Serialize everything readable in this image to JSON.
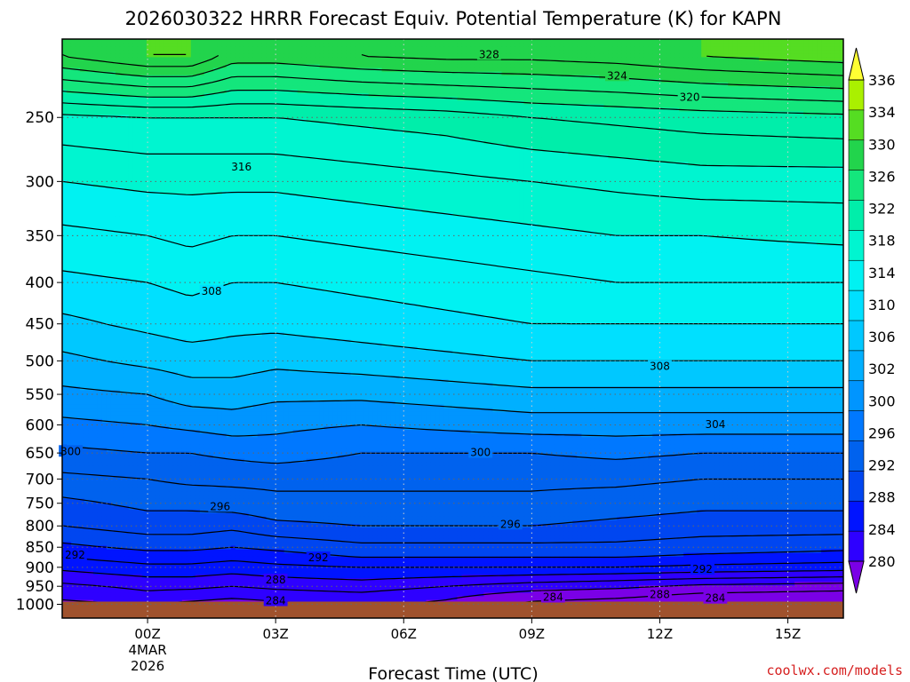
{
  "title": "2026030322 HRRR Forecast Equiv. Potential Temperature (K) for KAPN",
  "xlabel": "Forecast Time (UTC)",
  "credit": "coolwx.com/models",
  "colors": {
    "terrain": "#a0522d",
    "contour": "#000000",
    "gridline": "#666666"
  },
  "chart_data": {
    "type": "heatmap",
    "title": "2026030322 HRRR Forecast Equiv. Potential Temperature (K) for KAPN",
    "xlabel": "Forecast Time (UTC)",
    "ylabel": "",
    "y_scale": "log",
    "y_reversed": true,
    "y_range": [
      1040,
      200
    ],
    "x_range": [
      -2,
      16.3
    ],
    "grid": "dotted",
    "x_ticks": [
      {
        "value": 0,
        "label": "00Z",
        "date_lines": [
          "4MAR",
          "2026"
        ]
      },
      {
        "value": 3,
        "label": "03Z"
      },
      {
        "value": 6,
        "label": "06Z"
      },
      {
        "value": 9,
        "label": "09Z"
      },
      {
        "value": 12,
        "label": "12Z"
      },
      {
        "value": 15,
        "label": "15Z"
      }
    ],
    "y_ticks": [
      250,
      300,
      350,
      400,
      450,
      500,
      550,
      600,
      650,
      700,
      750,
      800,
      850,
      900,
      950,
      1000
    ],
    "forecast_hours": [
      -2,
      0,
      1,
      2,
      3,
      5,
      7,
      9,
      11,
      13,
      16.3
    ],
    "levels_hpa": [
      1000,
      975,
      950,
      925,
      900,
      875,
      850,
      800,
      750,
      700,
      650,
      600,
      550,
      500,
      450,
      400,
      350,
      300,
      250,
      210
    ],
    "theta_e_K": [
      [
        283.5,
        284.0,
        283.5,
        283.0,
        283.5,
        284.5,
        283.5,
        281.5,
        281.0,
        280.5,
        280.0
      ],
      [
        284.5,
        285.5,
        285.0,
        284.5,
        285.0,
        285.5,
        284.5,
        283.0,
        282.5,
        281.5,
        281.0
      ],
      [
        285.5,
        286.5,
        286.5,
        286.0,
        286.5,
        287.0,
        286.0,
        285.0,
        284.5,
        283.5,
        283.0
      ],
      [
        287.0,
        288.0,
        288.0,
        287.5,
        288.0,
        288.5,
        288.0,
        287.5,
        287.0,
        286.5,
        286.0
      ],
      [
        288.5,
        289.5,
        289.5,
        289.0,
        289.5,
        290.0,
        290.0,
        290.0,
        290.0,
        289.5,
        289.0
      ],
      [
        290.0,
        291.0,
        291.0,
        290.5,
        291.0,
        292.0,
        292.0,
        292.0,
        292.0,
        291.5,
        291.0
      ],
      [
        291.5,
        292.5,
        292.5,
        292.0,
        292.5,
        293.5,
        293.5,
        293.5,
        293.5,
        293.0,
        292.5
      ],
      [
        294.0,
        295.0,
        295.0,
        294.5,
        295.5,
        296.0,
        296.0,
        296.0,
        295.5,
        295.0,
        295.0
      ],
      [
        295.5,
        296.5,
        296.5,
        297.0,
        297.5,
        297.5,
        297.5,
        297.5,
        297.0,
        296.5,
        296.5
      ],
      [
        297.5,
        298.0,
        298.5,
        298.5,
        298.5,
        298.5,
        298.5,
        298.5,
        298.5,
        298.0,
        298.0
      ],
      [
        299.5,
        300.0,
        300.0,
        300.5,
        301.0,
        300.0,
        300.0,
        300.0,
        300.5,
        300.0,
        300.0
      ],
      [
        301.5,
        302.0,
        302.5,
        303.0,
        302.5,
        302.0,
        302.5,
        303.0,
        303.0,
        303.0,
        303.0
      ],
      [
        303.5,
        304.0,
        305.0,
        305.0,
        304.5,
        304.5,
        305.0,
        305.5,
        305.5,
        305.5,
        305.5
      ],
      [
        305.5,
        306.5,
        307.0,
        307.0,
        306.5,
        307.0,
        307.5,
        308.0,
        308.0,
        308.0,
        308.0
      ],
      [
        307.5,
        308.5,
        309.0,
        308.5,
        308.5,
        309.0,
        309.5,
        310.0,
        310.0,
        310.0,
        310.0
      ],
      [
        309.5,
        310.0,
        310.5,
        310.0,
        310.0,
        310.5,
        311.0,
        311.5,
        312.0,
        312.0,
        312.0
      ],
      [
        311.5,
        312.0,
        312.5,
        312.0,
        312.0,
        312.5,
        313.0,
        313.5,
        314.0,
        314.0,
        314.5
      ],
      [
        314.0,
        314.5,
        314.5,
        314.5,
        314.5,
        315.0,
        315.5,
        316.0,
        316.5,
        317.0,
        317.0
      ],
      [
        317.5,
        318.0,
        318.0,
        318.0,
        318.0,
        318.5,
        319.0,
        320.0,
        320.5,
        321.0,
        321.5
      ],
      [
        328.0,
        330.0,
        330.0,
        327.0,
        327.0,
        328.0,
        328.5,
        328.5,
        329.0,
        330.0,
        331.0
      ]
    ],
    "contour_labels": [
      "328",
      "324",
      "320",
      "316",
      "308",
      "308",
      "304",
      "300",
      "300",
      "296",
      "296",
      "292",
      "292",
      "292",
      "288",
      "288",
      "284",
      "284",
      "284"
    ],
    "colorbar": {
      "levels": [
        280,
        284,
        288,
        292,
        296,
        300,
        302,
        304,
        306,
        308,
        310,
        314,
        318,
        322,
        326,
        330,
        334,
        336
      ],
      "labels": [
        "280",
        "284",
        "288",
        "292",
        "296",
        "300",
        "302",
        "306",
        "310",
        "314",
        "318",
        "322",
        "326",
        "330",
        "334",
        "336"
      ],
      "colors": [
        "#7a00e6",
        "#2e00ff",
        "#0014ff",
        "#0046f0",
        "#0062ee",
        "#0078ff",
        "#0095ff",
        "#00b0ff",
        "#00c8ff",
        "#00e0ff",
        "#00f2f2",
        "#00f5d0",
        "#00eeaa",
        "#14e67c",
        "#22d44c",
        "#55dd22",
        "#aaf000",
        "#ffff33"
      ]
    }
  }
}
